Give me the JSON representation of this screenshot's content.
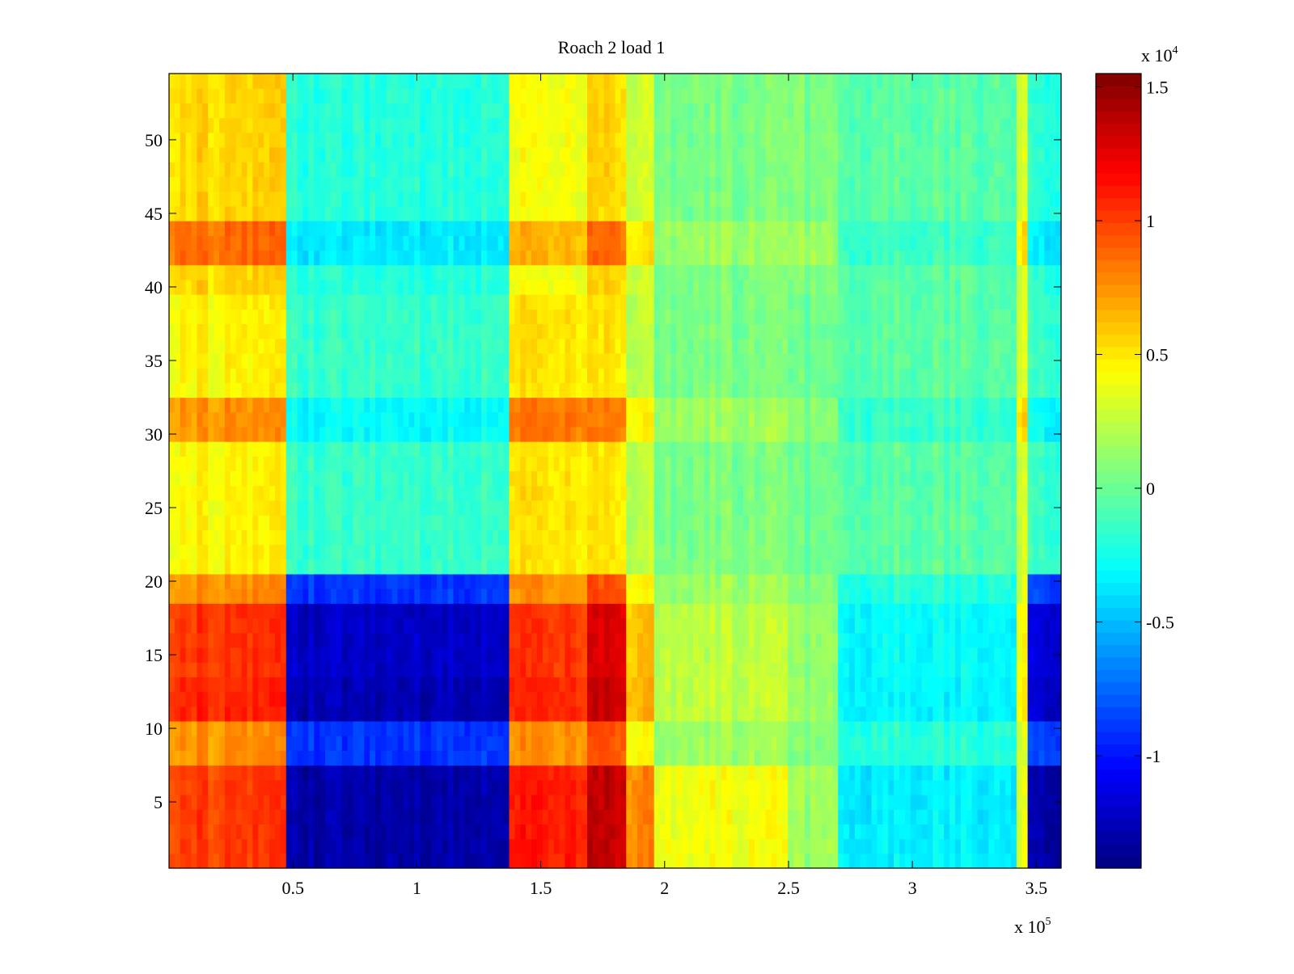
{
  "chart_data": {
    "type": "heatmap",
    "title": "Roach 2 load 1",
    "xlabel": "",
    "ylabel": "",
    "x_exponent_label": {
      "base": "x 10",
      "exp": "5"
    },
    "xlim": [
      0,
      3.6
    ],
    "x_multiplier": 100000,
    "ylim": [
      0.5,
      54.5
    ],
    "x_ticks": [
      {
        "value": 0.5,
        "label": "0.5"
      },
      {
        "value": 1,
        "label": "1"
      },
      {
        "value": 1.5,
        "label": "1.5"
      },
      {
        "value": 2,
        "label": "2"
      },
      {
        "value": 2.5,
        "label": "2.5"
      },
      {
        "value": 3,
        "label": "3"
      },
      {
        "value": 3.5,
        "label": "3.5"
      }
    ],
    "y_ticks": [
      {
        "value": 5,
        "label": "5"
      },
      {
        "value": 10,
        "label": "10"
      },
      {
        "value": 15,
        "label": "15"
      },
      {
        "value": 20,
        "label": "20"
      },
      {
        "value": 25,
        "label": "25"
      },
      {
        "value": 30,
        "label": "30"
      },
      {
        "value": 35,
        "label": "35"
      },
      {
        "value": 40,
        "label": "40"
      },
      {
        "value": 45,
        "label": "45"
      },
      {
        "value": 50,
        "label": "50"
      }
    ],
    "colorbar": {
      "colormap": "jet",
      "clim": [
        -1.42,
        1.55
      ],
      "multiplier_label": {
        "base": "x 10",
        "exp": "4"
      },
      "ticks": [
        {
          "value": -1,
          "label": "-1"
        },
        {
          "value": -0.5,
          "label": "-0.5"
        },
        {
          "value": 0,
          "label": "0"
        },
        {
          "value": 0.5,
          "label": "0.5"
        },
        {
          "value": 1,
          "label": "1"
        },
        {
          "value": 1.5,
          "label": "1.5"
        }
      ]
    },
    "x_segments": [
      {
        "x": [
          0,
          0.47
        ],
        "top": 0.55,
        "mid": 0.45,
        "low": 0.75,
        "bottom": 1.0
      },
      {
        "x": [
          0.47,
          1.37
        ],
        "top": -0.2,
        "mid": -0.15,
        "low": -0.9,
        "bottom": -1.3
      },
      {
        "x": [
          1.37,
          1.68
        ],
        "top": 0.4,
        "mid": 0.5,
        "low": 0.75,
        "bottom": 1.1
      },
      {
        "x": [
          1.68,
          1.84
        ],
        "top": 0.55,
        "mid": 0.5,
        "low": 0.95,
        "bottom": 1.35
      },
      {
        "x": [
          1.84,
          1.95
        ],
        "top": 0.3,
        "mid": 0.25,
        "low": 0.45,
        "bottom": 0.8
      },
      {
        "x": [
          1.95,
          2.5
        ],
        "top": 0.05,
        "mid": 0.05,
        "low": 0.15,
        "bottom": 0.4
      },
      {
        "x": [
          2.5,
          2.7
        ],
        "top": 0.05,
        "mid": 0.0,
        "low": 0.05,
        "bottom": 0.15
      },
      {
        "x": [
          2.7,
          3.42
        ],
        "top": -0.05,
        "mid": -0.05,
        "low": -0.2,
        "bottom": -0.35
      },
      {
        "x": [
          3.42,
          3.46
        ],
        "top": 0.3,
        "mid": 0.3,
        "low": 0.3,
        "bottom": 0.35
      },
      {
        "x": [
          3.46,
          3.6
        ],
        "top": -0.2,
        "mid": -0.15,
        "low": -0.85,
        "bottom": -1.3
      }
    ],
    "row_bands": [
      {
        "y": [
          42,
          44
        ],
        "strength": 0.45
      },
      {
        "y": [
          30,
          32
        ],
        "strength": 0.5
      },
      {
        "y": [
          11,
          13
        ],
        "strength": 0.35
      },
      {
        "y": [
          14,
          18
        ],
        "strength": 0.3
      }
    ]
  }
}
